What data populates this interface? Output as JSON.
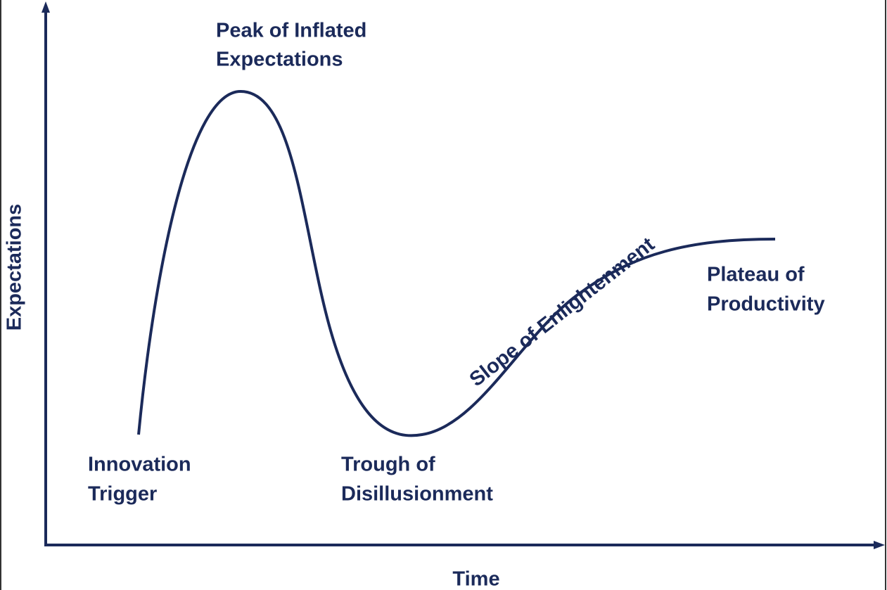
{
  "axes": {
    "x_label": "Time",
    "y_label": "Expectations"
  },
  "phases": [
    {
      "lines": [
        "Innovation",
        "Trigger"
      ]
    },
    {
      "lines": [
        "Peak of Inflated",
        "Expectations"
      ]
    },
    {
      "lines": [
        "Trough of",
        "Disillusionment"
      ]
    },
    {
      "lines": [
        "Slope of Enlightenment"
      ]
    },
    {
      "lines": [
        "Plateau of",
        "Productivity"
      ]
    }
  ]
}
